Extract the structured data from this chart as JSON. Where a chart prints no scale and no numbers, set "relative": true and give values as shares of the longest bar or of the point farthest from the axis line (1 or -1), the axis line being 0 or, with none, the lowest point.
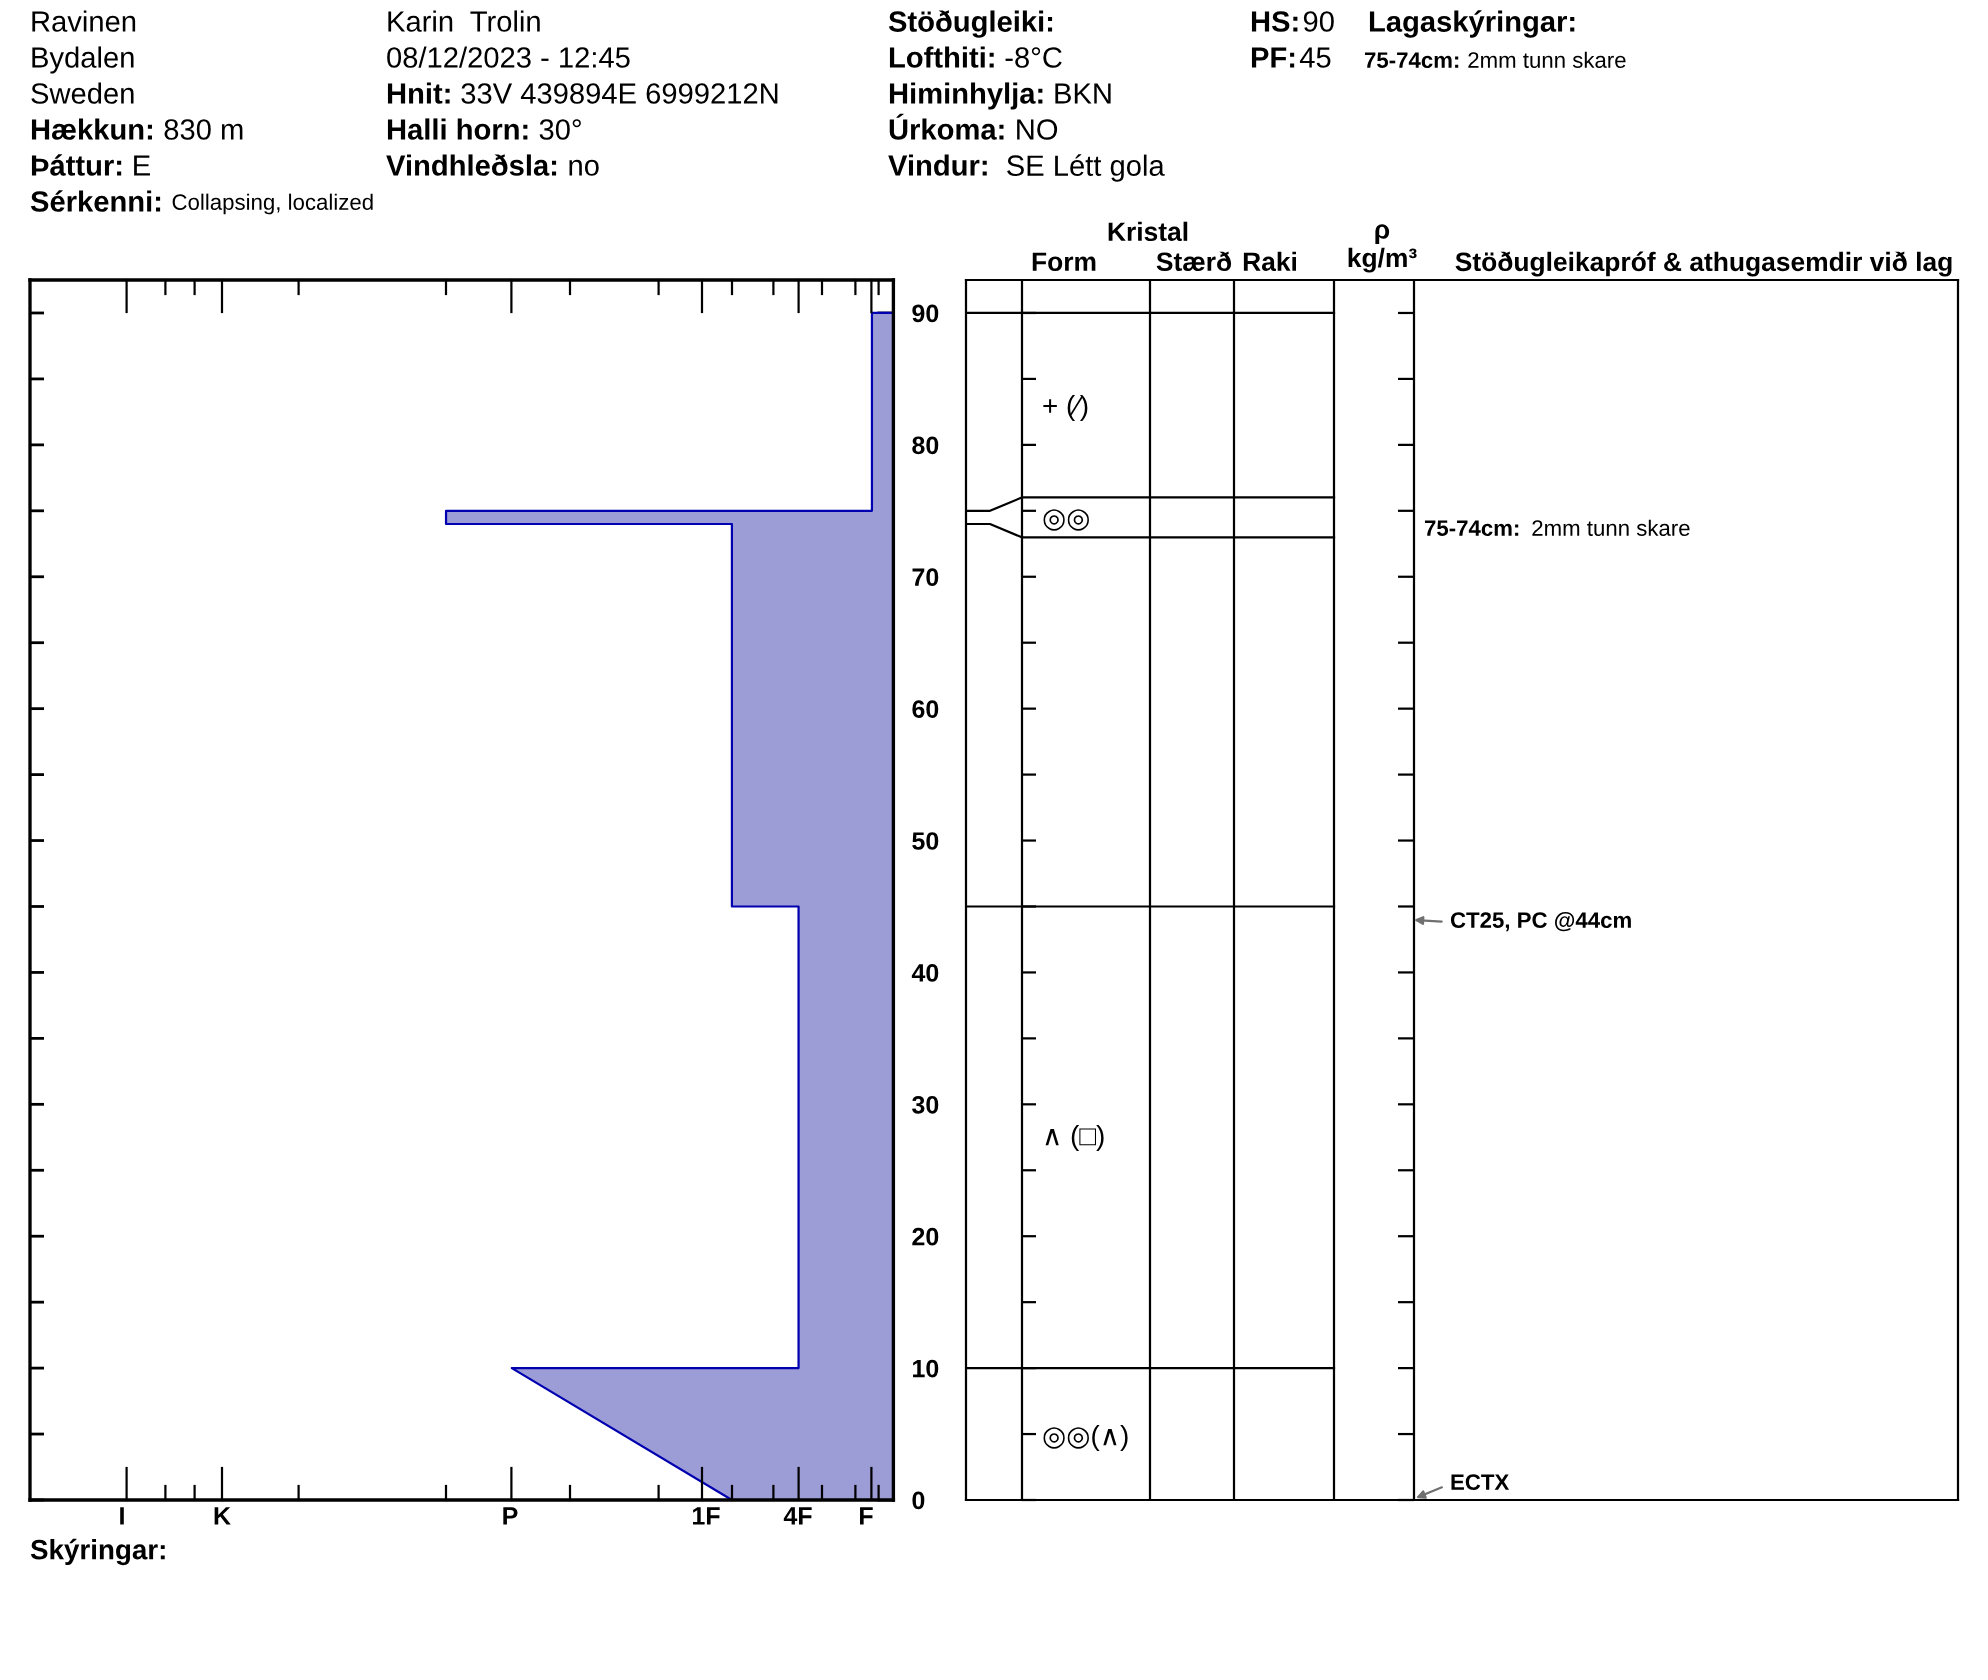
{
  "chart_data": [
    {
      "type": "other",
      "annotations": [
        "Ravinen",
        "Bydalen",
        "Sweden",
        "Hækkun:",
        "830 m",
        "Þáttur:",
        "E",
        "Sérkenni:",
        "Collapsing, localized",
        "Karin  Trolin",
        "08/12/2023 - 12:45",
        "Hnit:",
        "33V 439894E 6999212N",
        "Halli horn:",
        "30°",
        "Vindhleðsla:",
        "no",
        "Stöðugleiki:",
        "Lofthiti:",
        "-8°C",
        "Himinhylja:",
        "BKN",
        "Úrkoma:",
        "NO",
        "Vindur:",
        "SE Létt gola",
        "HS:",
        "90",
        "PF:",
        "45",
        "Lagaskýringar:",
        "75-74cm:",
        "2mm tunn skare"
      ]
    },
    {
      "type": "area",
      "orientation": "horizontal",
      "relative": true,
      "ylim": [
        0,
        92.5
      ],
      "yticks": [
        0,
        {
          "value": 5,
          "label": null
        },
        10,
        {
          "value": 15,
          "label": null
        },
        20,
        {
          "value": 25,
          "label": null
        },
        30,
        {
          "value": 35,
          "label": null
        },
        40,
        {
          "value": 45,
          "label": null
        },
        50,
        {
          "value": 55,
          "label": null
        },
        60,
        {
          "value": 65,
          "label": null
        },
        70,
        {
          "value": 75,
          "label": null
        },
        80,
        {
          "value": 85,
          "label": null
        },
        90
      ],
      "series": [
        {
          "color": "#9c9cd6",
          "x": [
            90,
            75,
            75,
            74,
            74,
            45,
            45,
            10,
            10,
            0
          ],
          "values": [
            -0.048,
            -0.048,
            -1,
            -1,
            -0.361,
            -0.361,
            -0.212,
            -0.212,
            -0.853,
            -0.361
          ]
        }
      ],
      "annotations": [
        "I",
        "K",
        "P",
        "1F",
        "4F",
        "F",
        "Skýringar:",
        "Kristal",
        "Form",
        "Stærð",
        "Raki",
        "ρ\nkg/m³",
        "Stöðugleikapróf & athugasemdir við lag",
        "+ (⁄)",
        "◎◎",
        "∧ (□)",
        "◎◎(∧)",
        "75-74cm:",
        "2mm tunn skare",
        "CT25, PC @44cm",
        "ECTX"
      ]
    }
  ]
}
